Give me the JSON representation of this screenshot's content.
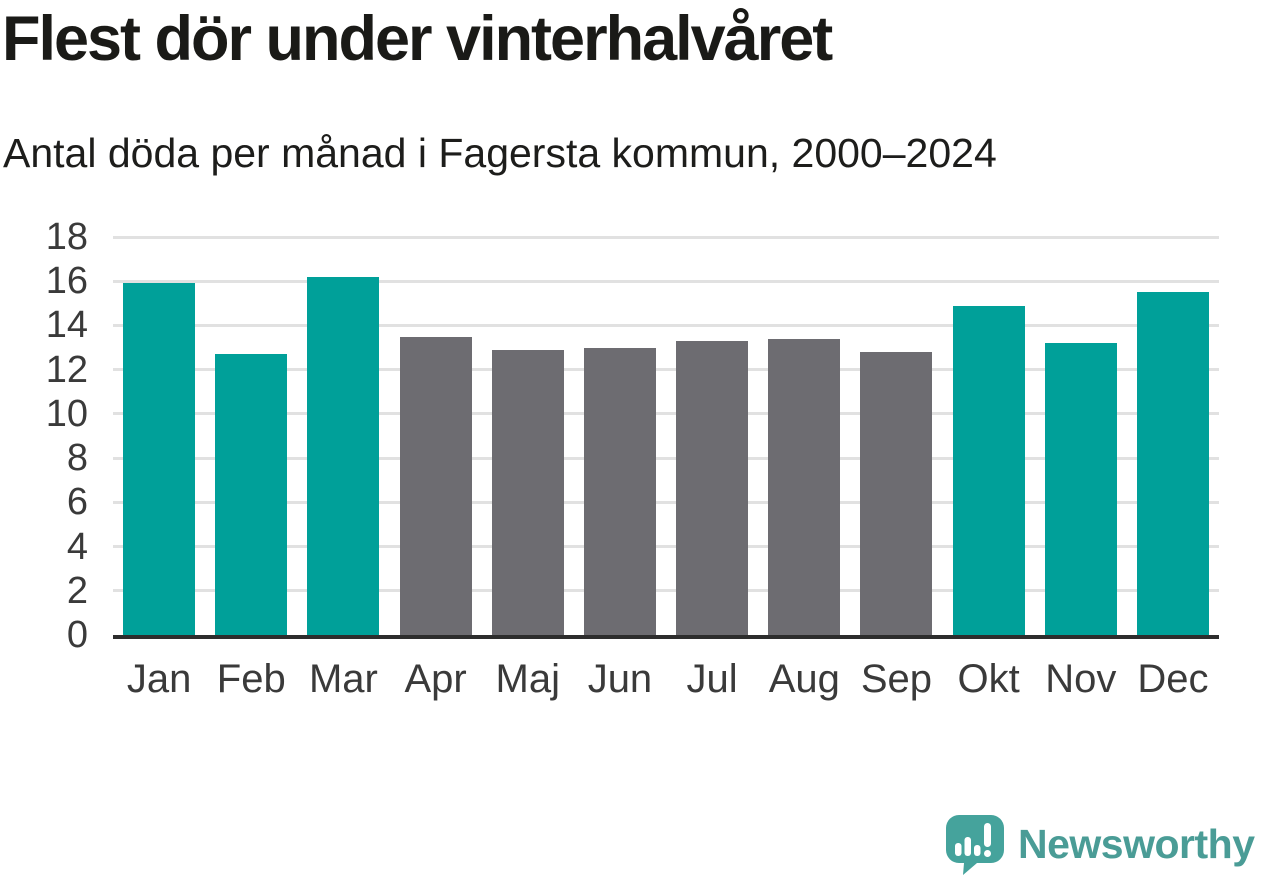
{
  "chart_data": {
    "type": "bar",
    "title": "Flest dör under vinterhalvåret",
    "subtitle": "Antal döda per månad i Fagersta kommun, 2000–2024",
    "categories": [
      "Jan",
      "Feb",
      "Mar",
      "Apr",
      "Maj",
      "Jun",
      "Jul",
      "Aug",
      "Sep",
      "Okt",
      "Nov",
      "Dec"
    ],
    "values": [
      15.9,
      12.7,
      16.2,
      13.5,
      12.9,
      13.0,
      13.3,
      13.4,
      12.8,
      14.9,
      13.2,
      15.5
    ],
    "bar_colors": [
      "winter",
      "winter",
      "winter",
      "summer",
      "summer",
      "summer",
      "summer",
      "summer",
      "summer",
      "winter",
      "winter",
      "winter"
    ],
    "colors": {
      "winter": "#00a099",
      "summer": "#6d6c71"
    },
    "xlabel": "",
    "ylabel": "",
    "ylim": [
      0,
      18
    ],
    "yticks": [
      0,
      2,
      4,
      6,
      8,
      10,
      12,
      14,
      16,
      18
    ],
    "grid": true,
    "legend": "none",
    "axis_color": "#2d2d2d",
    "gridline_color": "#e1e1e1",
    "tick_label_color": "#3a3a3a"
  },
  "branding": {
    "logo_text": "Newsworthy",
    "logo_color": "#4a9c96",
    "logo_icon": "speech-bubble-bar-chart-exclamation"
  }
}
